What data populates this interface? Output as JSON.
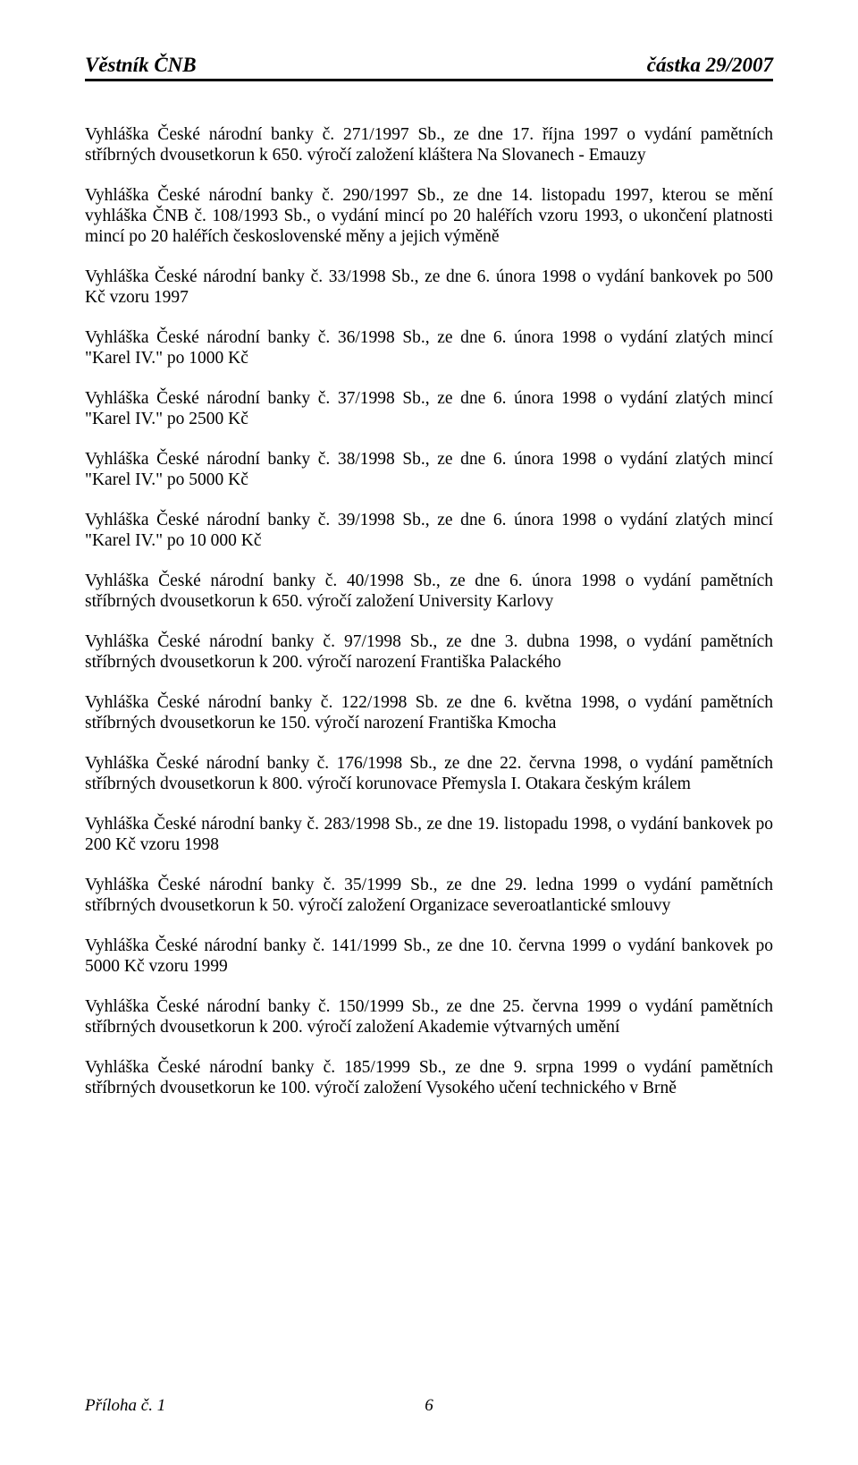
{
  "header": {
    "left": "Věstník ČNB",
    "right": "částka 29/2007"
  },
  "paragraphs": [
    "Vyhláška České národní banky č. 271/1997 Sb., ze dne 17. října 1997 o vydání pamětních stříbrných dvousetkorun k 650. výročí založení kláštera Na Slovanech - Emauzy",
    "Vyhláška České národní banky č. 290/1997 Sb., ze dne 14. listopadu 1997, kterou se mění vyhláška ČNB č. 108/1993 Sb., o vydání mincí po 20 haléřích vzoru 1993, o ukončení platnosti mincí po 20 haléřích československé měny a jejich výměně",
    "Vyhláška České národní banky č. 33/1998 Sb., ze dne 6. února 1998 o vydání bankovek po 500 Kč vzoru 1997",
    "Vyhláška České národní banky č. 36/1998 Sb., ze dne 6. února 1998 o vydání zlatých mincí \"Karel IV.\" po 1000 Kč",
    "Vyhláška České národní banky č. 37/1998 Sb., ze dne 6. února 1998 o vydání zlatých mincí \"Karel IV.\" po 2500 Kč",
    "Vyhláška České národní banky č. 38/1998 Sb., ze dne 6. února 1998 o vydání zlatých mincí \"Karel IV.\" po 5000 Kč",
    "Vyhláška České národní banky č. 39/1998 Sb., ze dne 6. února 1998 o vydání zlatých mincí \"Karel IV.\" po 10 000 Kč",
    "Vyhláška České národní banky č. 40/1998 Sb., ze dne 6. února 1998 o vydání pamětních stříbrných dvousetkorun k 650. výročí založení University Karlovy",
    "Vyhláška České národní banky č. 97/1998 Sb., ze dne 3. dubna 1998, o vydání pamětních stříbrných dvousetkorun k 200. výročí narození Františka Palackého",
    "Vyhláška České národní banky č. 122/1998 Sb. ze dne 6. května 1998, o vydání pamětních stříbrných dvousetkorun ke 150. výročí narození Františka Kmocha",
    "Vyhláška České národní banky č. 176/1998 Sb., ze dne 22. června 1998, o vydání pamětních stříbrných dvousetkorun k 800. výročí korunovace Přemysla I. Otakara českým králem",
    "Vyhláška České národní banky č. 283/1998 Sb., ze dne 19. listopadu 1998, o vydání bankovek po 200 Kč vzoru 1998",
    "Vyhláška České národní banky č. 35/1999 Sb., ze dne 29. ledna 1999 o vydání pamětních stříbrných dvousetkorun k 50. výročí založení Organizace severoatlantické smlouvy",
    "Vyhláška České národní banky č. 141/1999 Sb., ze dne 10. června 1999 o vydání bankovek po 5000 Kč vzoru 1999",
    "Vyhláška České národní banky č. 150/1999 Sb., ze dne 25. června 1999 o vydání pamětních stříbrných dvousetkorun k 200. výročí založení Akademie výtvarných umění",
    "Vyhláška České národní banky č. 185/1999 Sb., ze dne 9. srpna 1999 o vydání pamětních stříbrných dvousetkorun ke 100. výročí založení Vysokého učení technického v Brně"
  ],
  "footer": {
    "left": "Příloha č. 1",
    "page": "6"
  }
}
